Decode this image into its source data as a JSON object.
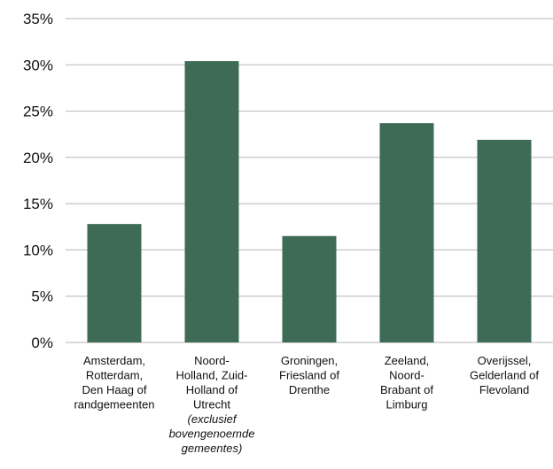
{
  "chart_data": {
    "type": "bar",
    "categories": [
      {
        "lines": [
          "Amsterdam,",
          "Rotterdam,",
          "Den Haag of",
          "randgemeenten"
        ],
        "italic_lines": []
      },
      {
        "lines": [
          "Noord-",
          "Holland, Zuid-",
          "Holland of",
          "Utrecht"
        ],
        "italic_lines": [
          "(exclusief",
          "bovengenoemde",
          "gemeentes)"
        ]
      },
      {
        "lines": [
          "Groningen,",
          "Friesland of",
          "Drenthe"
        ],
        "italic_lines": []
      },
      {
        "lines": [
          "Zeeland,",
          "Noord-",
          "Brabant of",
          "Limburg"
        ],
        "italic_lines": []
      },
      {
        "lines": [
          "Overijssel,",
          "Gelderland of",
          "Flevoland"
        ],
        "italic_lines": []
      }
    ],
    "values": [
      12.8,
      30.4,
      11.5,
      23.7,
      21.9
    ],
    "ylim": [
      0,
      35
    ],
    "yticks": [
      0,
      5,
      10,
      15,
      20,
      25,
      30,
      35
    ],
    "ytick_suffix": "%",
    "grid": true,
    "colors": {
      "bar": "#3d6b55",
      "grid": "#b5b5b5",
      "text": "#111111"
    },
    "title": "",
    "xlabel": "",
    "ylabel": ""
  }
}
